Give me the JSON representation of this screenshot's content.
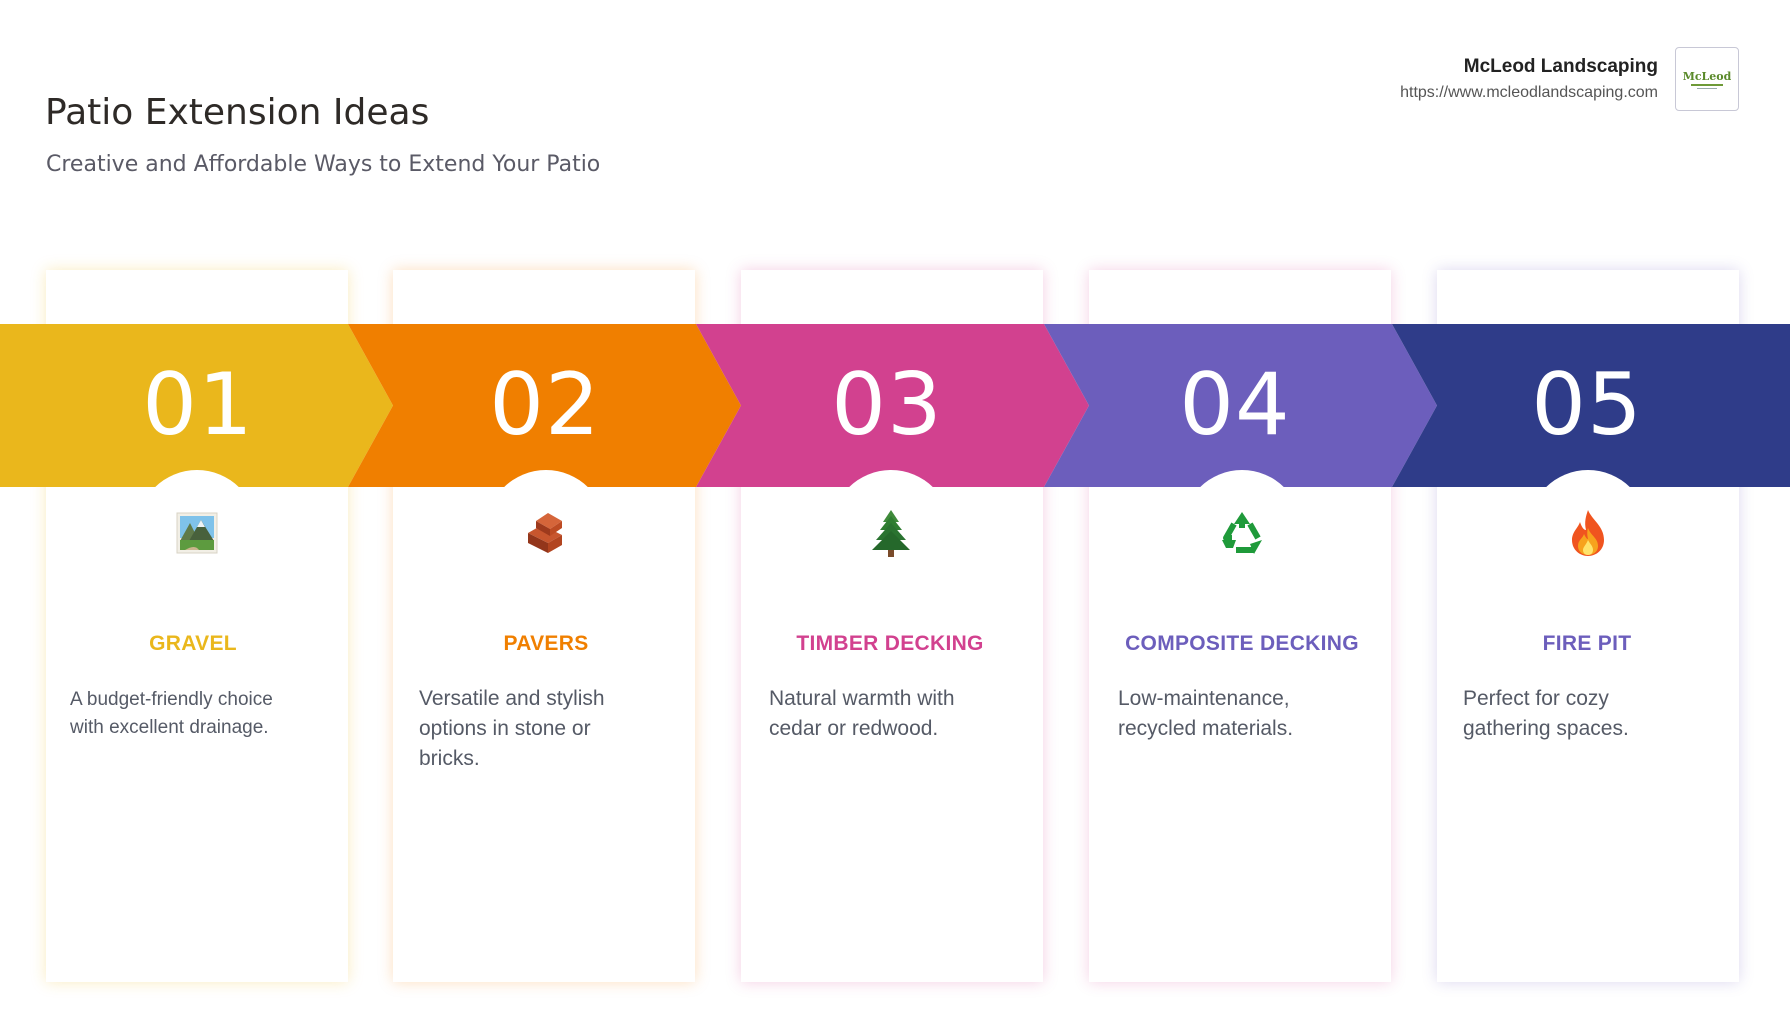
{
  "header": {
    "title": "Patio Extension Ideas",
    "subtitle": "Creative and Affordable Ways to Extend Your Patio"
  },
  "brand": {
    "name": "McLeod Landscaping",
    "url": "https://www.mcleodlandscaping.com",
    "logo_text": "McLeod"
  },
  "colors": {
    "gravel": "#EAB71C",
    "pavers": "#F07F00",
    "timber": "#D2418F",
    "composite": "#6C5EBC",
    "firepit": "#2F3C89"
  },
  "steps": [
    {
      "number": "01",
      "label": "GRAVEL",
      "icon": "landscape-photo-icon",
      "description": "A budget-friendly choice with excellent drainage."
    },
    {
      "number": "02",
      "label": "PAVERS",
      "icon": "bricks-icon",
      "description": "Versatile and stylish options in stone or bricks."
    },
    {
      "number": "03",
      "label": "TIMBER DECKING",
      "icon": "evergreen-tree-icon",
      "description": "Natural warmth with cedar or redwood."
    },
    {
      "number": "04",
      "label": "COMPOSITE DECKING",
      "icon": "recycle-icon",
      "description": "Low-maintenance, recycled materials."
    },
    {
      "number": "05",
      "label": "FIRE PIT",
      "icon": "fire-icon",
      "description": "Perfect for cozy gathering spaces."
    }
  ]
}
